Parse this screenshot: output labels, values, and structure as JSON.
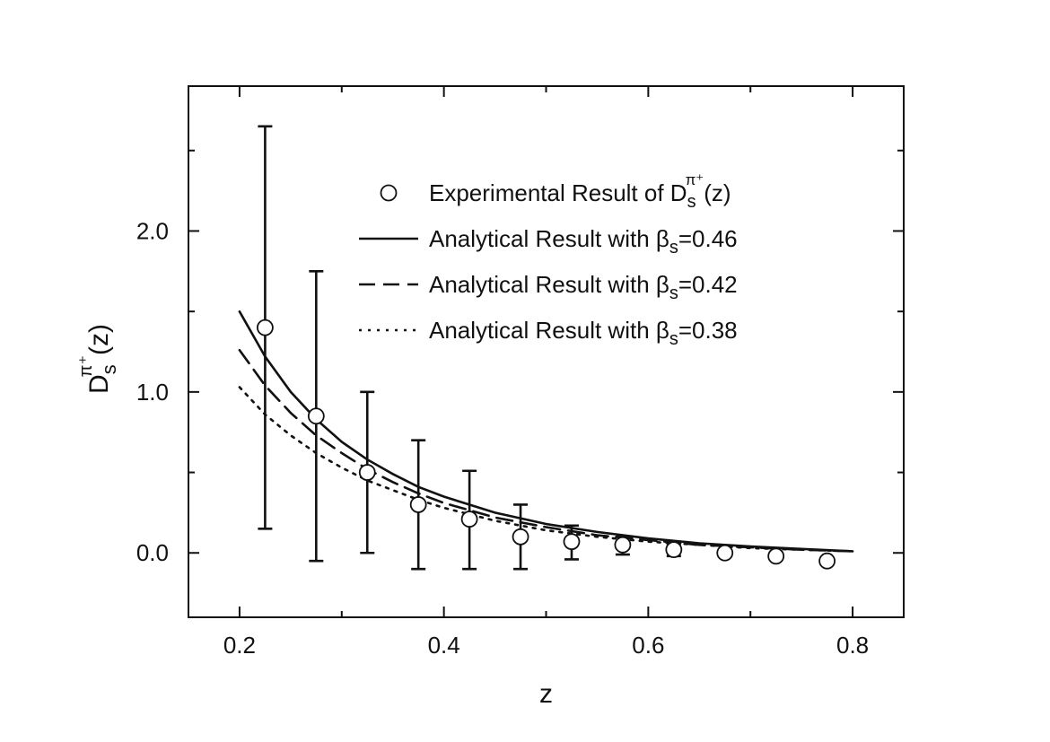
{
  "chart_data": {
    "type": "scatter",
    "xlabel": "z",
    "ylabel": {
      "base": "D",
      "sub": "s",
      "sup": "π⁺",
      "arg": "(z)"
    },
    "xlim": [
      0.15,
      0.85
    ],
    "ylim": [
      -0.4,
      2.9
    ],
    "x_ticks": [
      0.2,
      0.4,
      0.6,
      0.8
    ],
    "x_tick_labels": [
      "0.2",
      "0.4",
      "0.6",
      "0.8"
    ],
    "y_ticks": [
      0.0,
      1.0,
      2.0
    ],
    "y_tick_labels": [
      "0.0",
      "1.0",
      "2.0"
    ],
    "legend_position": "top-right",
    "series": [
      {
        "kind": "points",
        "name": "Experimental Result of D",
        "name_sub": "s",
        "name_sup": "π⁺",
        "name_suffix": "(z)",
        "marker": "open-circle",
        "x": [
          0.225,
          0.275,
          0.325,
          0.375,
          0.425,
          0.475,
          0.525,
          0.575,
          0.625,
          0.675,
          0.725,
          0.775
        ],
        "y": [
          1.4,
          0.85,
          0.5,
          0.3,
          0.21,
          0.1,
          0.07,
          0.05,
          0.02,
          0.0,
          -0.02,
          -0.05
        ],
        "err_low": [
          0.15,
          -0.05,
          0.0,
          -0.1,
          -0.1,
          -0.1,
          -0.04,
          -0.01,
          -0.02,
          null,
          null,
          null
        ],
        "err_high": [
          2.65,
          1.75,
          1.0,
          0.7,
          0.51,
          0.3,
          0.17,
          0.1,
          0.05,
          null,
          null,
          null
        ]
      },
      {
        "kind": "line",
        "name": "Analytical Result with β",
        "name_sub": "s",
        "name_suffix": "=0.46",
        "dash": "solid",
        "x": [
          0.2,
          0.225,
          0.25,
          0.275,
          0.3,
          0.325,
          0.35,
          0.375,
          0.4,
          0.45,
          0.5,
          0.55,
          0.6,
          0.65,
          0.7,
          0.75,
          0.8
        ],
        "y": [
          1.5,
          1.22,
          1.0,
          0.83,
          0.69,
          0.58,
          0.49,
          0.41,
          0.35,
          0.25,
          0.18,
          0.13,
          0.09,
          0.06,
          0.04,
          0.025,
          0.01
        ]
      },
      {
        "kind": "line",
        "name": "Analytical Result with β",
        "name_sub": "s",
        "name_suffix": "=0.42",
        "dash": "dashed",
        "x": [
          0.2,
          0.225,
          0.25,
          0.275,
          0.3,
          0.325,
          0.35,
          0.375,
          0.4,
          0.45,
          0.5,
          0.55,
          0.6,
          0.65,
          0.7,
          0.75,
          0.8
        ],
        "y": [
          1.26,
          1.04,
          0.87,
          0.73,
          0.62,
          0.52,
          0.44,
          0.37,
          0.31,
          0.22,
          0.16,
          0.11,
          0.08,
          0.05,
          0.035,
          0.02,
          0.01
        ]
      },
      {
        "kind": "line",
        "name": "Analytical Result with β",
        "name_sub": "s",
        "name_suffix": "=0.38",
        "dash": "dotted",
        "x": [
          0.2,
          0.225,
          0.25,
          0.275,
          0.3,
          0.325,
          0.35,
          0.375,
          0.4,
          0.45,
          0.5,
          0.55,
          0.6,
          0.65,
          0.7,
          0.75,
          0.8
        ],
        "y": [
          1.03,
          0.86,
          0.73,
          0.62,
          0.53,
          0.45,
          0.39,
          0.33,
          0.28,
          0.2,
          0.14,
          0.1,
          0.07,
          0.05,
          0.03,
          0.02,
          0.01
        ]
      }
    ]
  }
}
